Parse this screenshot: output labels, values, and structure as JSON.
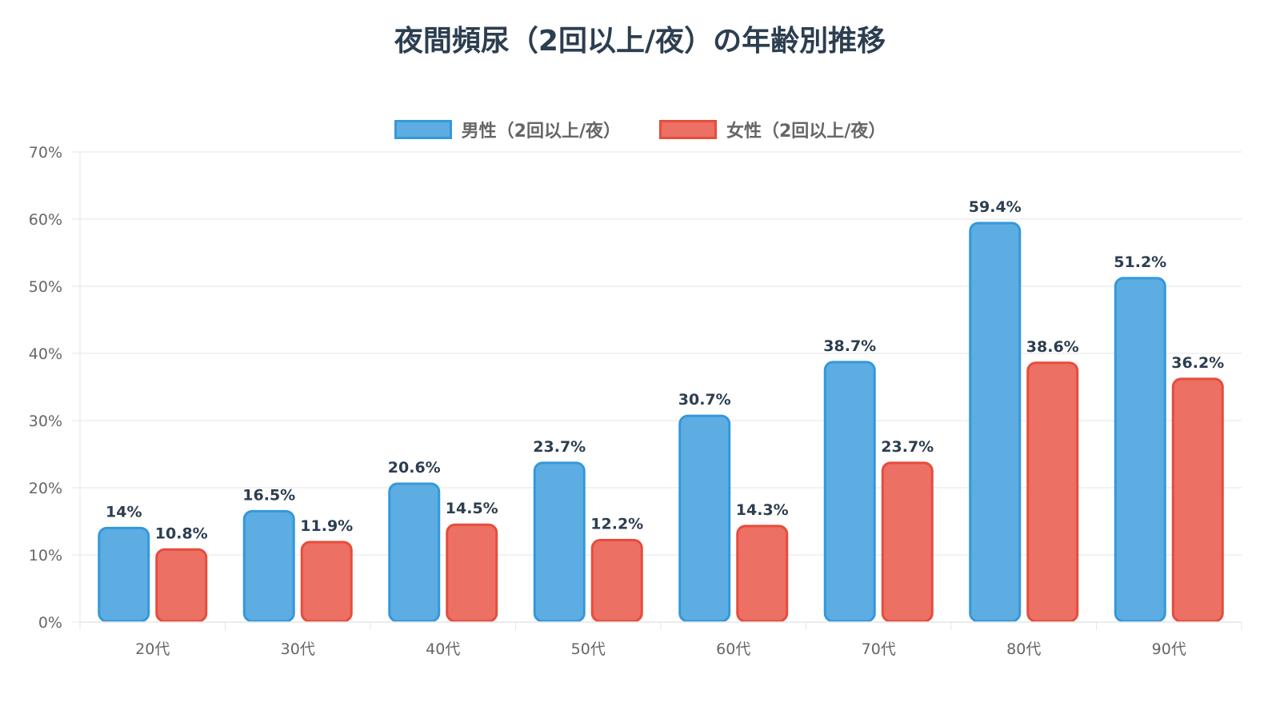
{
  "chart_data": {
    "type": "bar",
    "title": "夜間頻尿（2回以上/夜）の年齢別推移",
    "categories": [
      "20代",
      "30代",
      "40代",
      "50代",
      "60代",
      "70代",
      "80代",
      "90代"
    ],
    "series": [
      {
        "name": "男性（2回以上/夜）",
        "values": [
          14,
          16.5,
          20.6,
          23.7,
          30.7,
          38.7,
          59.4,
          51.2
        ],
        "labels": [
          "14%",
          "16.5%",
          "20.6%",
          "23.7%",
          "30.7%",
          "38.7%",
          "59.4%",
          "51.2%"
        ],
        "fill": "#5dade2",
        "stroke": "#3498db"
      },
      {
        "name": "女性（2回以上/夜）",
        "values": [
          10.8,
          11.9,
          14.5,
          12.2,
          14.3,
          23.7,
          38.6,
          36.2
        ],
        "labels": [
          "10.8%",
          "11.9%",
          "14.5%",
          "12.2%",
          "14.3%",
          "23.7%",
          "38.6%",
          "36.2%"
        ],
        "fill": "#ec7063",
        "stroke": "#e74c3c"
      }
    ],
    "ylim": [
      0,
      70
    ],
    "yticks": [
      "0%",
      "10%",
      "20%",
      "30%",
      "40%",
      "50%",
      "60%",
      "70%"
    ],
    "grid": true,
    "legend": "top"
  }
}
